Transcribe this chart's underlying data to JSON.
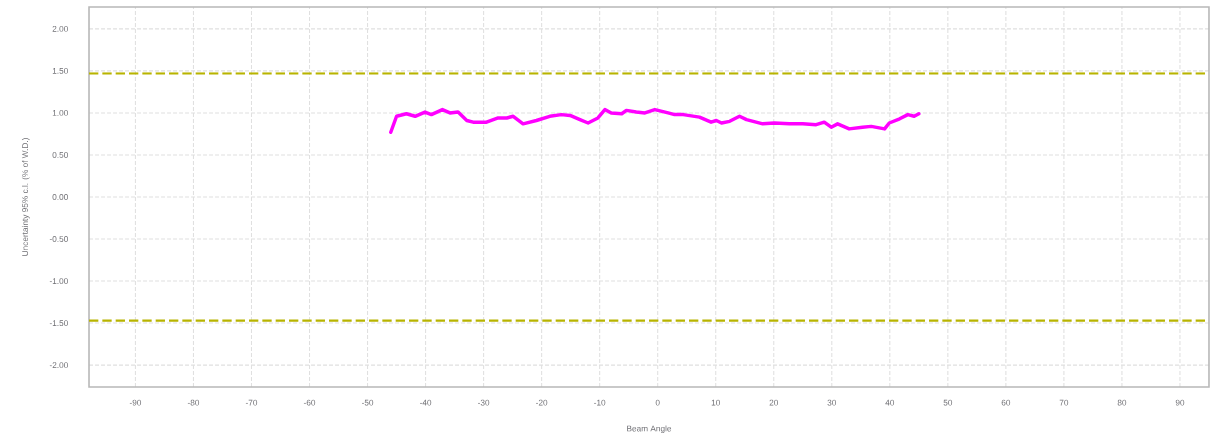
{
  "chart_data": {
    "type": "line",
    "xlabel": "Beam Angle",
    "ylabel": "Uncertainty 95% c.l. (% of W.D.)",
    "xlim": [
      -98,
      95
    ],
    "xticks": [
      -90,
      -80,
      -70,
      -60,
      -50,
      -40,
      -30,
      -20,
      -10,
      0,
      10,
      20,
      30,
      40,
      50,
      60,
      70,
      80,
      90
    ],
    "ylim": [
      -2.26,
      2.26
    ],
    "yticks": [
      {
        "value": -2,
        "label": "-2.00"
      },
      {
        "value": -1.5,
        "label": "-1.50"
      },
      {
        "value": -1,
        "label": "-1.00"
      },
      {
        "value": -0.5,
        "label": "-0.50"
      },
      {
        "value": 0,
        "label": "0.00"
      },
      {
        "value": 0.5,
        "label": "0.50"
      },
      {
        "value": 1,
        "label": "1.00"
      },
      {
        "value": 1.5,
        "label": "1.50"
      },
      {
        "value": 2,
        "label": "2.00"
      }
    ],
    "grid": true,
    "marker": "none",
    "line_style": "solid",
    "series": [
      {
        "color": "#ff00ff",
        "x": [
          -46.0,
          -45.0,
          -43.3,
          -41.8,
          -40.1,
          -39.0,
          -37.1,
          -35.8,
          -34.4,
          -32.9,
          -31.8,
          -29.5,
          -27.5,
          -26.0,
          -24.9,
          -23.2,
          -20.9,
          -18.6,
          -16.6,
          -15.1,
          -13.4,
          -12.0,
          -10.3,
          -9.1,
          -8.0,
          -6.2,
          -5.4,
          -3.7,
          -2.2,
          -0.5,
          1.8,
          2.9,
          4.4,
          7.2,
          9.2,
          10.1,
          11.0,
          12.4,
          14.1,
          15.3,
          18.1,
          20.1,
          22.7,
          25.0,
          27.3,
          28.7,
          29.9,
          31.0,
          33.0,
          35.3,
          36.8,
          39.1,
          39.9,
          41.7,
          43.1,
          44.2,
          45.0
        ],
        "values": [
          0.77,
          0.96,
          0.99,
          0.96,
          1.01,
          0.98,
          1.04,
          1.0,
          1.01,
          0.91,
          0.89,
          0.89,
          0.94,
          0.94,
          0.96,
          0.87,
          0.91,
          0.96,
          0.98,
          0.97,
          0.92,
          0.88,
          0.94,
          1.04,
          1.0,
          0.99,
          1.03,
          1.01,
          1.0,
          1.04,
          1.0,
          0.98,
          0.98,
          0.95,
          0.89,
          0.91,
          0.88,
          0.9,
          0.96,
          0.92,
          0.87,
          0.88,
          0.87,
          0.87,
          0.86,
          0.89,
          0.83,
          0.87,
          0.81,
          0.83,
          0.84,
          0.81,
          0.88,
          0.93,
          0.98,
          0.96,
          0.99
        ]
      }
    ],
    "ref_lines": [
      {
        "axis": "y",
        "value": 1.47,
        "color": "#b8b400",
        "line_style": "dashed"
      },
      {
        "axis": "y",
        "value": -1.47,
        "color": "#b8b400",
        "line_style": "dashed"
      }
    ]
  }
}
